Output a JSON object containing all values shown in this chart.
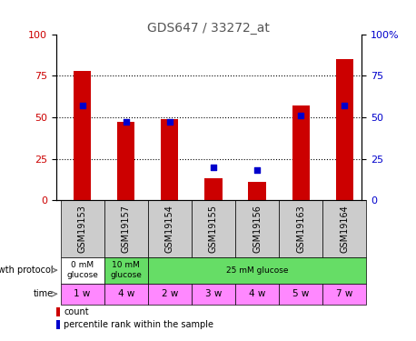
{
  "title": "GDS647 / 33272_at",
  "samples": [
    "GSM19153",
    "GSM19157",
    "GSM19154",
    "GSM19155",
    "GSM19156",
    "GSM19163",
    "GSM19164"
  ],
  "red_bars": [
    78,
    47,
    49,
    13,
    11,
    57,
    85
  ],
  "blue_squares": [
    57,
    47,
    47,
    20,
    18,
    51,
    57
  ],
  "ylim": [
    0,
    100
  ],
  "yticks": [
    0,
    25,
    50,
    75,
    100
  ],
  "bar_color": "#cc0000",
  "square_color": "#0000cc",
  "bar_width": 0.4,
  "growth_info": [
    [
      0,
      1,
      "#ffffff",
      "0 mM\nglucose"
    ],
    [
      1,
      2,
      "#66dd66",
      "10 mM\nglucose"
    ],
    [
      2,
      7,
      "#66dd66",
      "25 mM glucose"
    ]
  ],
  "time_labels": [
    "1 w",
    "4 w",
    "2 w",
    "3 w",
    "4 w",
    "5 w",
    "7 w"
  ],
  "time_bg_colors": [
    "#ff88ff",
    "#ff88ff",
    "#ff88ff",
    "#ff88ff",
    "#ff88ff",
    "#ff88ff",
    "#ff88ff"
  ],
  "sample_bg_color": "#cccccc",
  "legend_count_label": "count",
  "legend_pct_label": "percentile rank within the sample",
  "growth_protocol_label": "growth protocol",
  "time_row_label": "time",
  "title_color": "#555555",
  "axis_color_left": "#cc0000",
  "axis_color_right": "#0000cc",
  "x_data_min": -0.6,
  "x_data_max": 6.4
}
